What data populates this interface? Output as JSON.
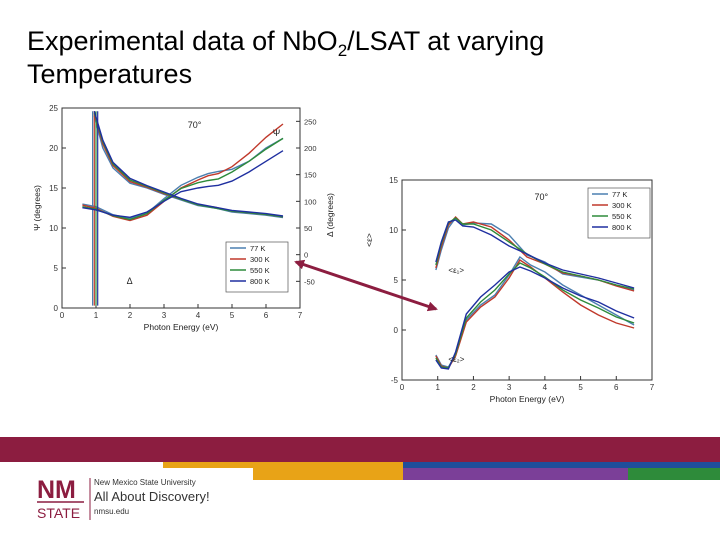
{
  "slide": {
    "title_part1": "Experimental data of Nb",
    "title_part2": "O",
    "title_sub": "2",
    "title_part3": "/LSAT at varying Temperatures"
  },
  "footer": {
    "logo_mark_top": "NM",
    "logo_mark_bottom": "STATE",
    "university": "New Mexico State University",
    "tagline": "All About Discovery!",
    "url": "nmsu.edu",
    "colors": {
      "maroon": "#8c1d40",
      "gold": "#e8a317",
      "blue": "#1f4e9b",
      "purple": "#7b3f98",
      "green": "#2e8b3a"
    }
  },
  "chart_data": [
    {
      "type": "line",
      "title": "70°",
      "xlabel": "Photon Energy (eV)",
      "ylabel": "Ψ (degrees)",
      "ylabel_right": "Δ (degrees)",
      "xlim": [
        0,
        7
      ],
      "ylim": [
        0,
        25
      ],
      "ylim_right": [
        -100,
        275
      ],
      "x_ticks": [
        0,
        1,
        2,
        3,
        4,
        5,
        6,
        7
      ],
      "y_ticks": [
        0,
        5,
        10,
        15,
        20,
        25
      ],
      "y_ticks_right": [
        -50,
        0,
        50,
        100,
        150,
        200,
        250
      ],
      "grid": false,
      "legend_position": "lower-right",
      "annotations": [
        {
          "text": "Ψ",
          "x": 6.2,
          "y": 21.5
        },
        {
          "text": "Δ",
          "x": 1.9,
          "y": 3.0
        }
      ],
      "series": [
        {
          "name": "77 K",
          "color": "#4b7fb0",
          "psi": [
            [
              0.95,
              24
            ],
            [
              1.2,
              20
            ],
            [
              1.5,
              17.5
            ],
            [
              2,
              15.6
            ],
            [
              2.5,
              15
            ],
            [
              3,
              14.2
            ],
            [
              3.5,
              13.5
            ],
            [
              4,
              12.8
            ],
            [
              4.5,
              12.5
            ],
            [
              5,
              12
            ],
            [
              5.5,
              11.8
            ],
            [
              6,
              11.6
            ],
            [
              6.5,
              11.3
            ]
          ],
          "delta": [
            [
              0.6,
              95
            ],
            [
              1,
              90
            ],
            [
              1.5,
              75
            ],
            [
              2,
              68
            ],
            [
              2.5,
              78
            ],
            [
              3,
              105
            ],
            [
              3.5,
              130
            ],
            [
              4,
              145
            ],
            [
              4.3,
              152
            ],
            [
              4.6,
              156
            ],
            [
              5,
              160
            ],
            [
              5.5,
              175
            ],
            [
              6,
              200
            ],
            [
              6.5,
              218
            ]
          ]
        },
        {
          "name": "300 K",
          "color": "#c0392b",
          "psi": [
            [
              0.95,
              24.2
            ],
            [
              1.2,
              20.5
            ],
            [
              1.5,
              17.8
            ],
            [
              2,
              15.8
            ],
            [
              2.5,
              15.1
            ],
            [
              3,
              14.3
            ],
            [
              3.5,
              13.6
            ],
            [
              4,
              12.9
            ],
            [
              4.5,
              12.6
            ],
            [
              5,
              12.1
            ],
            [
              5.5,
              11.9
            ],
            [
              6,
              11.7
            ],
            [
              6.5,
              11.4
            ]
          ],
          "delta": [
            [
              0.6,
              93
            ],
            [
              1,
              87
            ],
            [
              1.5,
              72
            ],
            [
              2,
              64
            ],
            [
              2.5,
              74
            ],
            [
              3,
              100
            ],
            [
              3.5,
              125
            ],
            [
              4,
              140
            ],
            [
              4.3,
              148
            ],
            [
              4.6,
              152
            ],
            [
              5,
              165
            ],
            [
              5.5,
              190
            ],
            [
              6,
              220
            ],
            [
              6.5,
              245
            ]
          ]
        },
        {
          "name": "550 K",
          "color": "#2e8b3a",
          "psi": [
            [
              0.95,
              24.4
            ],
            [
              1.2,
              20.8
            ],
            [
              1.5,
              18
            ],
            [
              2,
              16
            ],
            [
              2.5,
              15.2
            ],
            [
              3,
              14.4
            ],
            [
              3.5,
              13.6
            ],
            [
              4,
              12.9
            ],
            [
              4.5,
              12.5
            ],
            [
              5,
              12.1
            ],
            [
              5.5,
              11.9
            ],
            [
              6,
              11.7
            ],
            [
              6.5,
              11.4
            ]
          ],
          "delta": [
            [
              0.6,
              90
            ],
            [
              1,
              85
            ],
            [
              1.5,
              73
            ],
            [
              2,
              66
            ],
            [
              2.5,
              77
            ],
            [
              3,
              102
            ],
            [
              3.5,
              124
            ],
            [
              4,
              135
            ],
            [
              4.3,
              139
            ],
            [
              4.6,
              142
            ],
            [
              5,
              155
            ],
            [
              5.5,
              175
            ],
            [
              6,
              198
            ],
            [
              6.5,
              218
            ]
          ]
        },
        {
          "name": "800 K",
          "color": "#1f2fa0",
          "psi": [
            [
              0.95,
              24.6
            ],
            [
              1.2,
              21
            ],
            [
              1.5,
              18.2
            ],
            [
              2,
              16.2
            ],
            [
              2.5,
              15.3
            ],
            [
              3,
              14.5
            ],
            [
              3.5,
              13.7
            ],
            [
              4,
              13
            ],
            [
              4.5,
              12.6
            ],
            [
              5,
              12.2
            ],
            [
              5.5,
              12
            ],
            [
              6,
              11.8
            ],
            [
              6.5,
              11.5
            ]
          ],
          "delta": [
            [
              0.6,
              88
            ],
            [
              1,
              84
            ],
            [
              1.5,
              74
            ],
            [
              2,
              70
            ],
            [
              2.5,
              80
            ],
            [
              3,
              100
            ],
            [
              3.5,
              118
            ],
            [
              4,
              125
            ],
            [
              4.3,
              128
            ],
            [
              4.6,
              130
            ],
            [
              5,
              138
            ],
            [
              5.5,
              155
            ],
            [
              6,
              175
            ],
            [
              6.5,
              195
            ]
          ]
        }
      ]
    },
    {
      "type": "line",
      "title": "70°",
      "xlabel": "Photon Energy (eV)",
      "ylabel": "<ε>",
      "xlim": [
        0,
        7
      ],
      "ylim": [
        -5,
        15
      ],
      "x_ticks": [
        0,
        1,
        2,
        3,
        4,
        5,
        6,
        7
      ],
      "y_ticks": [
        -5,
        0,
        5,
        10,
        15
      ],
      "grid": false,
      "legend_position": "top-right",
      "annotations": [
        {
          "text": "<ε₁>",
          "x": 1.3,
          "y": 5.7
        },
        {
          "text": "<ε₂>",
          "x": 1.3,
          "y": -3.2
        }
      ],
      "series": [
        {
          "name": "77 K",
          "color": "#4b7fb0",
          "eps1": [
            [
              0.95,
              6
            ],
            [
              1.1,
              8
            ],
            [
              1.3,
              10.2
            ],
            [
              1.5,
              11.2
            ],
            [
              1.7,
              10.5
            ],
            [
              2,
              10.7
            ],
            [
              2.5,
              10.6
            ],
            [
              3,
              9.5
            ],
            [
              3.5,
              7.5
            ],
            [
              4,
              6.8
            ],
            [
              4.5,
              5.6
            ],
            [
              5,
              5.3
            ],
            [
              5.5,
              5
            ],
            [
              6,
              4.5
            ],
            [
              6.5,
              4
            ]
          ],
          "eps2": [
            [
              0.95,
              -2.5
            ],
            [
              1.1,
              -3.5
            ],
            [
              1.3,
              -3.7
            ],
            [
              1.5,
              -2.5
            ],
            [
              1.8,
              1
            ],
            [
              2.2,
              2.5
            ],
            [
              2.6,
              3.5
            ],
            [
              3,
              5.5
            ],
            [
              3.3,
              7.3
            ],
            [
              3.6,
              6.5
            ],
            [
              4,
              5.8
            ],
            [
              4.5,
              4.5
            ],
            [
              5,
              3.5
            ],
            [
              5.5,
              2.5
            ],
            [
              6,
              1.5
            ],
            [
              6.5,
              0.5
            ]
          ]
        },
        {
          "name": "300 K",
          "color": "#c0392b",
          "eps1": [
            [
              0.95,
              6.2
            ],
            [
              1.1,
              8.3
            ],
            [
              1.3,
              10.5
            ],
            [
              1.5,
              11.3
            ],
            [
              1.7,
              10.6
            ],
            [
              2,
              10.8
            ],
            [
              2.5,
              10.3
            ],
            [
              3,
              9
            ],
            [
              3.5,
              7.3
            ],
            [
              4,
              6.6
            ],
            [
              4.5,
              5.7
            ],
            [
              5,
              5.4
            ],
            [
              5.5,
              5
            ],
            [
              6,
              4.4
            ],
            [
              6.5,
              3.9
            ]
          ],
          "eps2": [
            [
              0.95,
              -2.6
            ],
            [
              1.1,
              -3.6
            ],
            [
              1.3,
              -3.8
            ],
            [
              1.5,
              -2.6
            ],
            [
              1.8,
              0.8
            ],
            [
              2.2,
              2.3
            ],
            [
              2.6,
              3.3
            ],
            [
              3,
              5.2
            ],
            [
              3.3,
              7
            ],
            [
              3.6,
              6.3
            ],
            [
              4,
              5.2
            ],
            [
              4.5,
              3.8
            ],
            [
              5,
              2.5
            ],
            [
              5.5,
              1.5
            ],
            [
              6,
              0.7
            ],
            [
              6.5,
              0.2
            ]
          ]
        },
        {
          "name": "550 K",
          "color": "#2e8b3a",
          "eps1": [
            [
              0.95,
              6.5
            ],
            [
              1.1,
              8.6
            ],
            [
              1.3,
              10.7
            ],
            [
              1.5,
              11.2
            ],
            [
              1.7,
              10.6
            ],
            [
              2,
              10.6
            ],
            [
              2.5,
              10
            ],
            [
              3,
              8.8
            ],
            [
              3.5,
              7.6
            ],
            [
              4,
              6.6
            ],
            [
              4.5,
              5.8
            ],
            [
              5,
              5.4
            ],
            [
              5.5,
              5
            ],
            [
              6,
              4.5
            ],
            [
              6.5,
              4.1
            ]
          ],
          "eps2": [
            [
              0.95,
              -2.8
            ],
            [
              1.1,
              -3.7
            ],
            [
              1.3,
              -3.8
            ],
            [
              1.5,
              -2.4
            ],
            [
              1.8,
              1.2
            ],
            [
              2.2,
              2.8
            ],
            [
              2.6,
              4
            ],
            [
              3,
              5.6
            ],
            [
              3.3,
              6.7
            ],
            [
              3.6,
              6.2
            ],
            [
              4,
              5.3
            ],
            [
              4.5,
              4
            ],
            [
              5,
              3
            ],
            [
              5.5,
              2.2
            ],
            [
              6,
              1.3
            ],
            [
              6.5,
              0.7
            ]
          ]
        },
        {
          "name": "800 K",
          "color": "#1f2fa0",
          "eps1": [
            [
              0.95,
              6.8
            ],
            [
              1.1,
              8.8
            ],
            [
              1.3,
              10.8
            ],
            [
              1.5,
              11
            ],
            [
              1.7,
              10.4
            ],
            [
              2,
              10.3
            ],
            [
              2.5,
              9.5
            ],
            [
              3,
              8.4
            ],
            [
              3.5,
              7.6
            ],
            [
              4,
              6.7
            ],
            [
              4.5,
              6
            ],
            [
              5,
              5.6
            ],
            [
              5.5,
              5.2
            ],
            [
              6,
              4.7
            ],
            [
              6.5,
              4.2
            ]
          ],
          "eps2": [
            [
              0.95,
              -3
            ],
            [
              1.1,
              -3.8
            ],
            [
              1.3,
              -3.9
            ],
            [
              1.5,
              -2.2
            ],
            [
              1.8,
              1.6
            ],
            [
              2.2,
              3.3
            ],
            [
              2.6,
              4.5
            ],
            [
              3,
              5.8
            ],
            [
              3.3,
              6.3
            ],
            [
              3.6,
              5.9
            ],
            [
              4,
              5.2
            ],
            [
              4.5,
              4.2
            ],
            [
              5,
              3.4
            ],
            [
              5.5,
              2.8
            ],
            [
              6,
              1.9
            ],
            [
              6.5,
              1.2
            ]
          ]
        }
      ]
    }
  ]
}
